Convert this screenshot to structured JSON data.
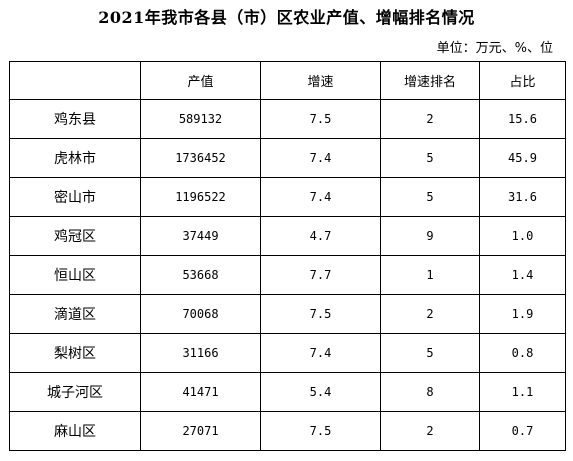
{
  "title": "2021年我市各县（市）区农业产值、增幅排名情况",
  "unit": "单位：万元、%、位",
  "table": {
    "headers": [
      "",
      "产值",
      "增速",
      "增速排名",
      "占比"
    ],
    "rows": [
      {
        "region": "鸡东县",
        "output": "589132",
        "growth": "7.5",
        "rank": "2",
        "share": "15.6"
      },
      {
        "region": "虎林市",
        "output": "1736452",
        "growth": "7.4",
        "rank": "5",
        "share": "45.9"
      },
      {
        "region": "密山市",
        "output": "1196522",
        "growth": "7.4",
        "rank": "5",
        "share": "31.6"
      },
      {
        "region": "鸡冠区",
        "output": "37449",
        "growth": "4.7",
        "rank": "9",
        "share": "1.0"
      },
      {
        "region": "恒山区",
        "output": "53668",
        "growth": "7.7",
        "rank": "1",
        "share": "1.4"
      },
      {
        "region": "滴道区",
        "output": "70068",
        "growth": "7.5",
        "rank": "2",
        "share": "1.9"
      },
      {
        "region": "梨树区",
        "output": "31166",
        "growth": "7.4",
        "rank": "5",
        "share": "0.8"
      },
      {
        "region": "城子河区",
        "output": "41471",
        "growth": "5.4",
        "rank": "8",
        "share": "1.1"
      },
      {
        "region": "麻山区",
        "output": "27071",
        "growth": "7.5",
        "rank": "2",
        "share": "0.7"
      }
    ]
  }
}
